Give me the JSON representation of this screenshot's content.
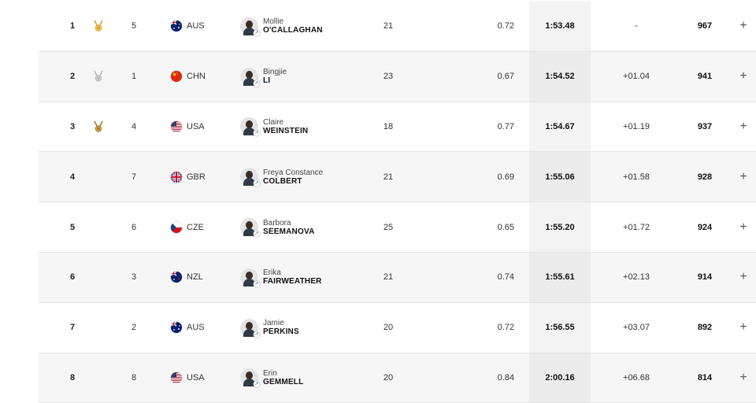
{
  "rows": [
    {
      "rank": "1",
      "medal": "gold",
      "lane": "5",
      "noc": "AUS",
      "given": "Mollie",
      "family": "O'CALLAGHAN",
      "age": "21",
      "reaction": "0.72",
      "time": "1:53.48",
      "behind": "-",
      "points": "967"
    },
    {
      "rank": "2",
      "medal": "silver",
      "lane": "1",
      "noc": "CHN",
      "given": "Bingjie",
      "family": "LI",
      "age": "23",
      "reaction": "0.67",
      "time": "1:54.52",
      "behind": "+01.04",
      "points": "941"
    },
    {
      "rank": "3",
      "medal": "bronze",
      "lane": "4",
      "noc": "USA",
      "given": "Claire",
      "family": "WEINSTEIN",
      "age": "18",
      "reaction": "0.77",
      "time": "1:54.67",
      "behind": "+01.19",
      "points": "937"
    },
    {
      "rank": "4",
      "medal": "",
      "lane": "7",
      "noc": "GBR",
      "given": "Freya Constance",
      "family": "COLBERT",
      "age": "21",
      "reaction": "0.69",
      "time": "1:55.06",
      "behind": "+01.58",
      "points": "928"
    },
    {
      "rank": "5",
      "medal": "",
      "lane": "6",
      "noc": "CZE",
      "given": "Barbora",
      "family": "SEEMANOVA",
      "age": "25",
      "reaction": "0.65",
      "time": "1:55.20",
      "behind": "+01.72",
      "points": "924"
    },
    {
      "rank": "6",
      "medal": "",
      "lane": "3",
      "noc": "NZL",
      "given": "Erika",
      "family": "FAIRWEATHER",
      "age": "21",
      "reaction": "0.74",
      "time": "1:55.61",
      "behind": "+02.13",
      "points": "914"
    },
    {
      "rank": "7",
      "medal": "",
      "lane": "2",
      "noc": "AUS",
      "given": "Jamie",
      "family": "PERKINS",
      "age": "20",
      "reaction": "0.72",
      "time": "1:56.55",
      "behind": "+03.07",
      "points": "892"
    },
    {
      "rank": "8",
      "medal": "",
      "lane": "8",
      "noc": "USA",
      "given": "Erin",
      "family": "GEMMELL",
      "age": "20",
      "reaction": "0.84",
      "time": "2:00.16",
      "behind": "+06.68",
      "points": "814"
    }
  ],
  "colors": {
    "gold": "#d9a520",
    "silver": "#b9b9b9",
    "bronze": "#b07a2a"
  },
  "expand_label": "+"
}
